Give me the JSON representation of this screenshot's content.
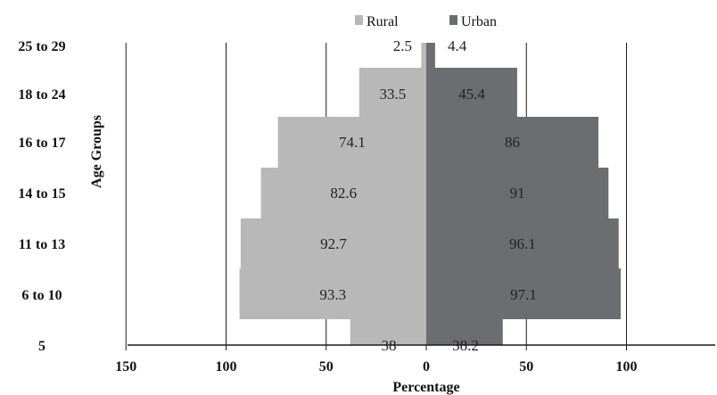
{
  "chart_data": {
    "type": "bar",
    "orientation": "horizontal",
    "layout": "population-pyramid",
    "categories": [
      "25 to 29",
      "18 to 24",
      "16 to 17",
      "14 to 15",
      "11 to 13",
      "6 to 10",
      "5"
    ],
    "series": [
      {
        "name": "Rural",
        "values": [
          2.5,
          33.5,
          74.1,
          82.6,
          92.7,
          93.3,
          38
        ],
        "direction": "left",
        "color": "#b8b8b8"
      },
      {
        "name": "Urban",
        "values": [
          4.4,
          45.4,
          86,
          91,
          96.1,
          97.1,
          38.2
        ],
        "direction": "right",
        "color": "#6c6d70"
      }
    ],
    "x_ticks": [
      "150",
      "100",
      "50",
      "0",
      "50",
      "100"
    ],
    "xlabel": "Percentage",
    "ylabel": "Age Groups",
    "xlim": [
      -150,
      145
    ],
    "grid": "vertical",
    "legend_position": "top-center",
    "bar_gap": 0
  }
}
